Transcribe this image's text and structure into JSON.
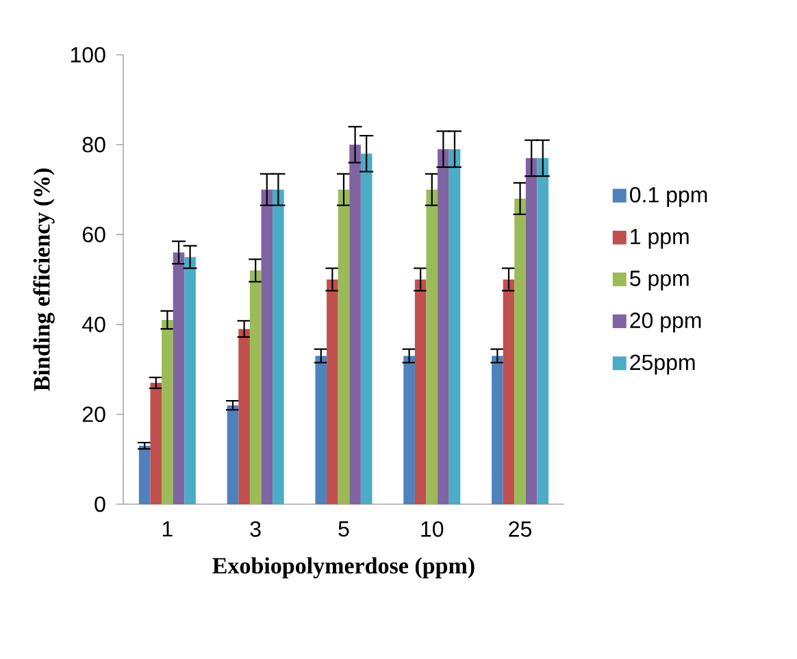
{
  "chart_data": {
    "type": "bar",
    "xlabel": "Exobiopolymerdose (ppm)",
    "ylabel": "Binding efficiency (%)",
    "categories": [
      "1",
      "3",
      "5",
      "10",
      "25"
    ],
    "series": [
      {
        "name": "0.1 ppm",
        "color": "#4f81bd",
        "values": [
          13,
          22,
          33,
          33,
          33
        ],
        "errors": [
          0.7,
          1,
          1.5,
          1.5,
          1.5
        ]
      },
      {
        "name": "1 ppm",
        "color": "#c0504d",
        "values": [
          27,
          39,
          50,
          50,
          50
        ],
        "errors": [
          1.2,
          1.8,
          2.5,
          2.5,
          2.5
        ]
      },
      {
        "name": "5 ppm",
        "color": "#9bbb59",
        "values": [
          41,
          52,
          70,
          70,
          68
        ],
        "errors": [
          2,
          2.5,
          3.5,
          3.5,
          3.5
        ]
      },
      {
        "name": "20 ppm",
        "color": "#8064a2",
        "values": [
          56,
          70,
          80,
          79,
          77
        ],
        "errors": [
          2.5,
          3.5,
          4,
          4,
          4
        ]
      },
      {
        "name": "25ppm",
        "color": "#4bacc6",
        "values": [
          55,
          70,
          78,
          79,
          77
        ],
        "errors": [
          2.5,
          3.5,
          4,
          4,
          4
        ]
      }
    ],
    "ylim": [
      0,
      100
    ],
    "yticks": [
      0,
      20,
      40,
      60,
      80,
      100
    ],
    "legend": "right"
  }
}
